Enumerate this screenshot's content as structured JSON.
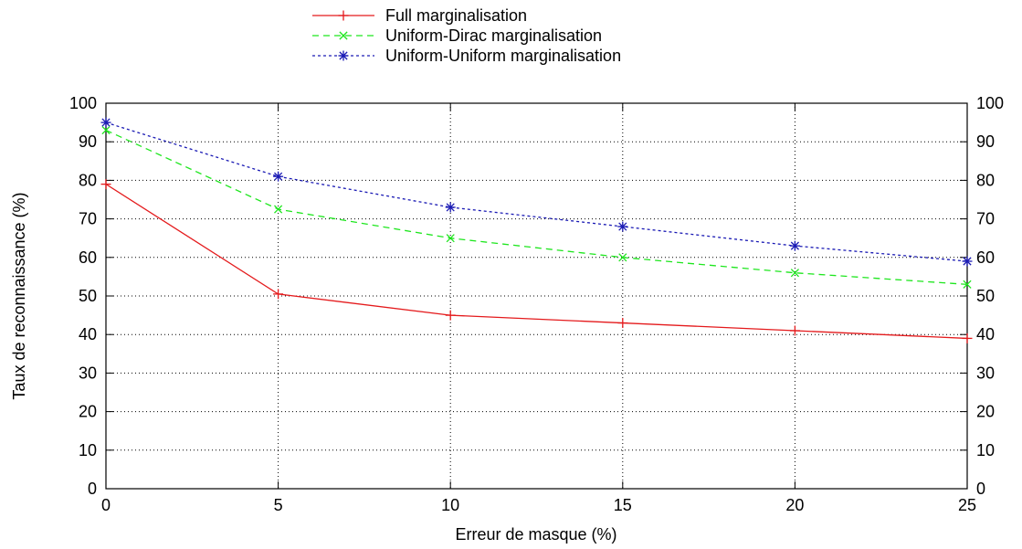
{
  "chart_data": {
    "type": "line",
    "title": "",
    "xlabel": "Erreur de masque (%)",
    "ylabel": "Taux de reconnaissance (%)",
    "xlim": [
      0,
      25
    ],
    "ylim": [
      0,
      100
    ],
    "xticks": [
      0,
      5,
      10,
      15,
      20,
      25
    ],
    "yticks": [
      0,
      10,
      20,
      30,
      40,
      50,
      60,
      70,
      80,
      90,
      100
    ],
    "y2ticks": [
      0,
      10,
      20,
      30,
      40,
      50,
      60,
      70,
      80,
      90,
      100
    ],
    "grid": true,
    "legend_position": "top-center",
    "x": [
      0,
      5,
      10,
      15,
      20,
      25
    ],
    "series": [
      {
        "name": "Full marginalisation",
        "values": [
          79,
          50.5,
          45,
          43,
          41,
          39
        ],
        "color": "#e41a1c",
        "dash": "solid",
        "marker": "plus"
      },
      {
        "name": "Uniform-Dirac marginalisation",
        "values": [
          93,
          72.5,
          65,
          60,
          56,
          53
        ],
        "color": "#1ee61e",
        "dash": "dashed",
        "marker": "cross"
      },
      {
        "name": "Uniform-Uniform marginalisation",
        "values": [
          95,
          81,
          73,
          68,
          63,
          59
        ],
        "color": "#1a1ab4",
        "dash": "dotted",
        "marker": "star"
      }
    ]
  }
}
